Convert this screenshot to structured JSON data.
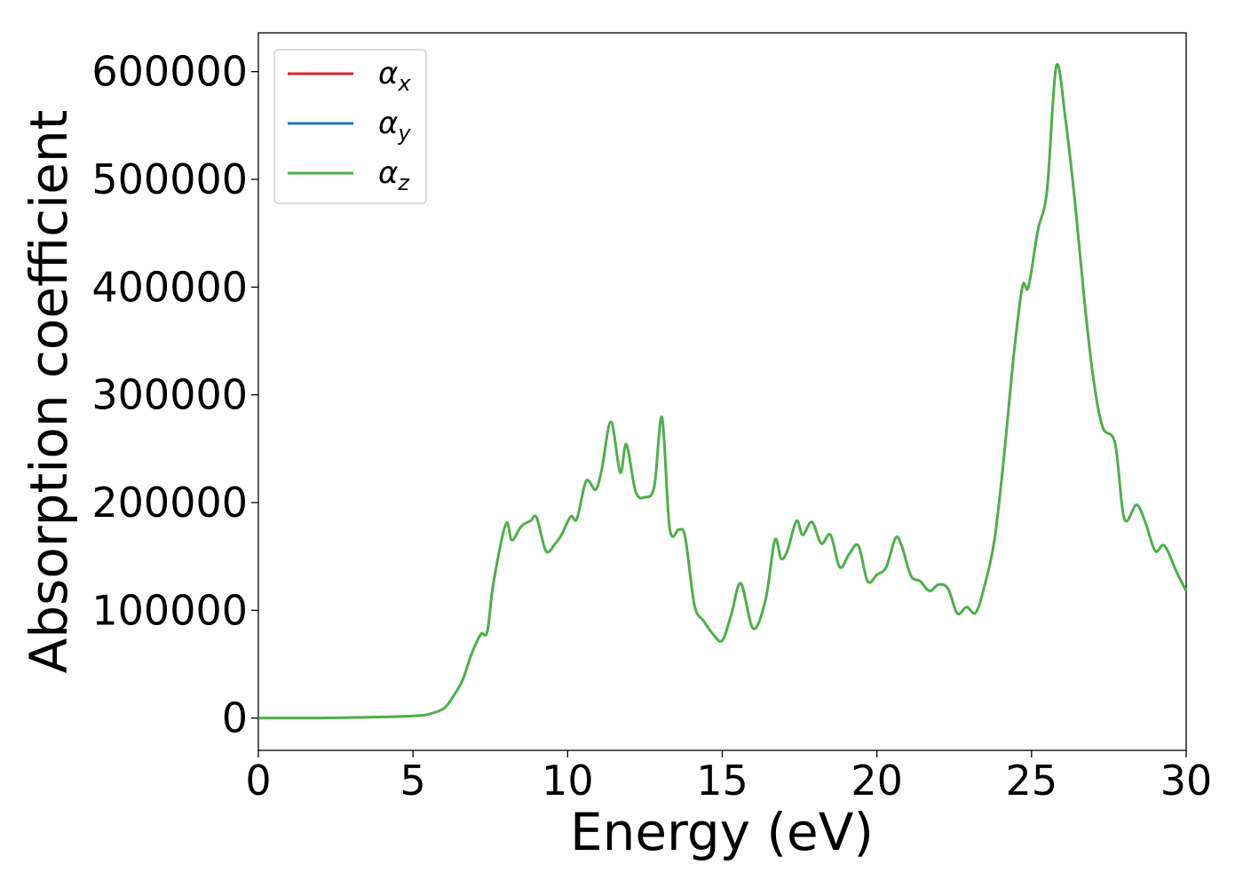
{
  "chart_data": {
    "type": "line",
    "title": "",
    "xlabel": "Energy (eV)",
    "ylabel": "Absorption coefficient",
    "xlim": [
      0,
      30
    ],
    "ylim": [
      -30000,
      636000
    ],
    "xticks": [
      0,
      5,
      10,
      15,
      20,
      25,
      30
    ],
    "yticks": [
      0,
      100000,
      200000,
      300000,
      400000,
      500000,
      600000
    ],
    "xtick_labels": [
      "0",
      "5",
      "10",
      "15",
      "20",
      "25",
      "30"
    ],
    "ytick_labels": [
      "0",
      "100000",
      "200000",
      "300000",
      "400000",
      "500000",
      "600000"
    ],
    "grid": false,
    "legend_position": "top-left",
    "legend": [
      {
        "symbol": "α",
        "sub": "x",
        "color": "#d62728"
      },
      {
        "symbol": "α",
        "sub": "y",
        "color": "#1f77b4"
      },
      {
        "symbol": "α",
        "sub": "z",
        "color": "#4daf4a"
      }
    ],
    "x": [
      0,
      1,
      2,
      3,
      4,
      5,
      5.5,
      6,
      6.3,
      6.6,
      6.9,
      7.2,
      7.4,
      7.6,
      8.0,
      8.2,
      8.5,
      8.8,
      9.0,
      9.3,
      9.6,
      9.8,
      10.1,
      10.3,
      10.6,
      10.9,
      11.1,
      11.4,
      11.7,
      11.9,
      12.2,
      12.5,
      12.8,
      13.05,
      13.3,
      13.6,
      13.8,
      14.1,
      14.4,
      14.7,
      15.0,
      15.3,
      15.6,
      16.0,
      16.4,
      16.7,
      16.9,
      17.1,
      17.4,
      17.6,
      17.9,
      18.2,
      18.5,
      18.8,
      19.1,
      19.4,
      19.7,
      20.0,
      20.3,
      20.6,
      20.8,
      21.1,
      21.4,
      21.7,
      22.0,
      22.3,
      22.6,
      22.9,
      23.2,
      23.5,
      23.8,
      24.1,
      24.4,
      24.7,
      24.9,
      25.2,
      25.5,
      25.8,
      26.1,
      26.4,
      26.7,
      27.0,
      27.3,
      27.7,
      28.0,
      28.4,
      28.7,
      29.0,
      29.3,
      29.7,
      30.0
    ],
    "series": [
      {
        "name": "",
        "color": "#4daf4a",
        "values": [
          0,
          0,
          0,
          500,
          1000,
          2000,
          3500,
          9000,
          20000,
          35000,
          60000,
          78000,
          80000,
          125000,
          180000,
          165000,
          178000,
          183000,
          186000,
          155000,
          162000,
          170000,
          187000,
          185000,
          220000,
          212000,
          230000,
          275000,
          228000,
          254000,
          210000,
          205000,
          215000,
          279000,
          176000,
          175000,
          168000,
          105000,
          90000,
          78000,
          72000,
          97000,
          125000,
          83000,
          110000,
          165000,
          148000,
          155000,
          183000,
          170000,
          182000,
          162000,
          170000,
          140000,
          152000,
          160000,
          127000,
          133000,
          140000,
          167000,
          160000,
          132000,
          127000,
          118000,
          124000,
          120000,
          97000,
          103000,
          98000,
          125000,
          165000,
          240000,
          330000,
          400000,
          400000,
          452000,
          490000,
          605000,
          555000,
          480000,
          390000,
          315000,
          270000,
          255000,
          185000,
          198000,
          180000,
          155000,
          160000,
          135000,
          118000
        ]
      }
    ]
  }
}
